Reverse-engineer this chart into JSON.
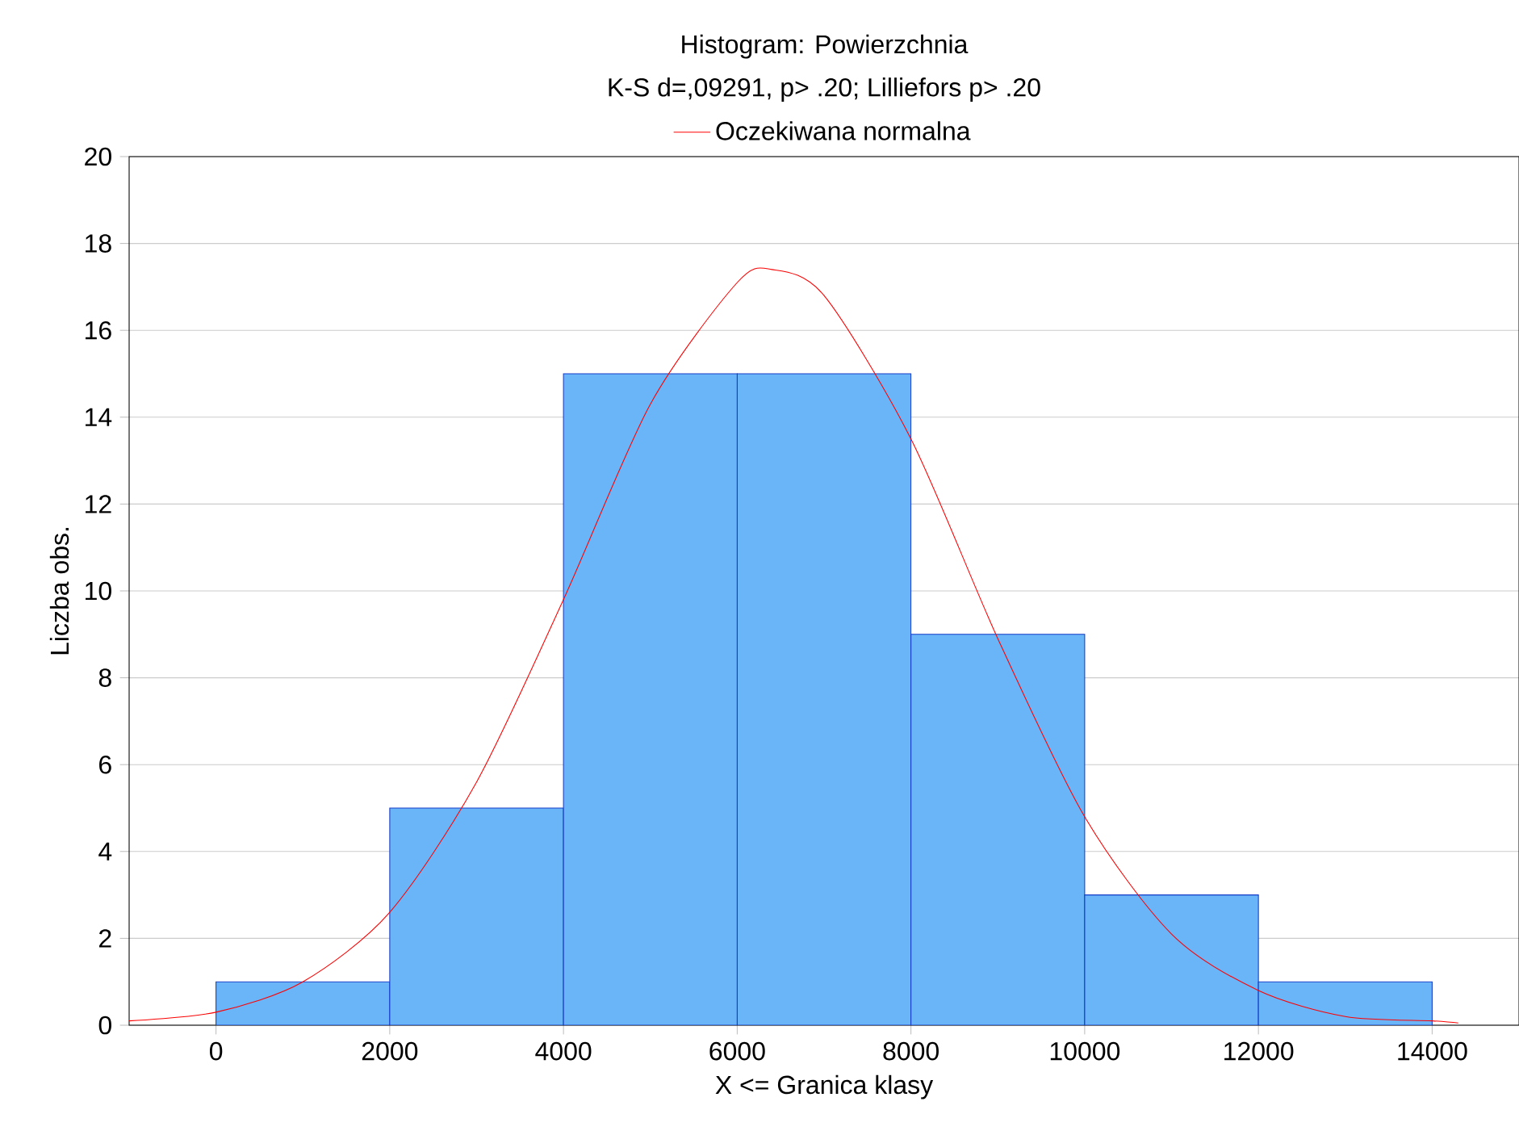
{
  "chart_data": {
    "type": "histogram",
    "title": "Histogram: Powierzchnia",
    "subtitle": "K-S d=,09291, p> .20; Lilliefors p> .20",
    "xlabel": "X <= Granica klasy",
    "ylabel": "Liczba obs.",
    "bins": [
      0,
      2000,
      4000,
      6000,
      8000,
      10000,
      12000,
      14000
    ],
    "values": [
      1,
      5,
      15,
      15,
      9,
      3,
      1
    ],
    "color": "#6ab4f8",
    "series": [
      {
        "name": "Oczekiwana normalna",
        "type": "line",
        "color": "#ff0000",
        "x": [
          -1000,
          0,
          1000,
          2000,
          3000,
          4000,
          5000,
          6000,
          6400,
          7000,
          8000,
          9000,
          10000,
          11000,
          12000,
          13000,
          14000,
          14300
        ],
        "values": [
          0.1,
          0.3,
          1.0,
          2.6,
          5.6,
          9.8,
          14.3,
          17.1,
          17.4,
          16.8,
          13.5,
          8.9,
          4.8,
          2.1,
          0.8,
          0.2,
          0.1,
          0.05
        ]
      }
    ],
    "xlim": [
      -1000,
      15000
    ],
    "ylim": [
      0,
      20
    ],
    "xticks": [
      0,
      2000,
      4000,
      6000,
      8000,
      10000,
      12000,
      14000
    ],
    "yticks": [
      0,
      2,
      4,
      6,
      8,
      10,
      12,
      14,
      16,
      18,
      20
    ],
    "grid": "y",
    "legend": "top"
  }
}
